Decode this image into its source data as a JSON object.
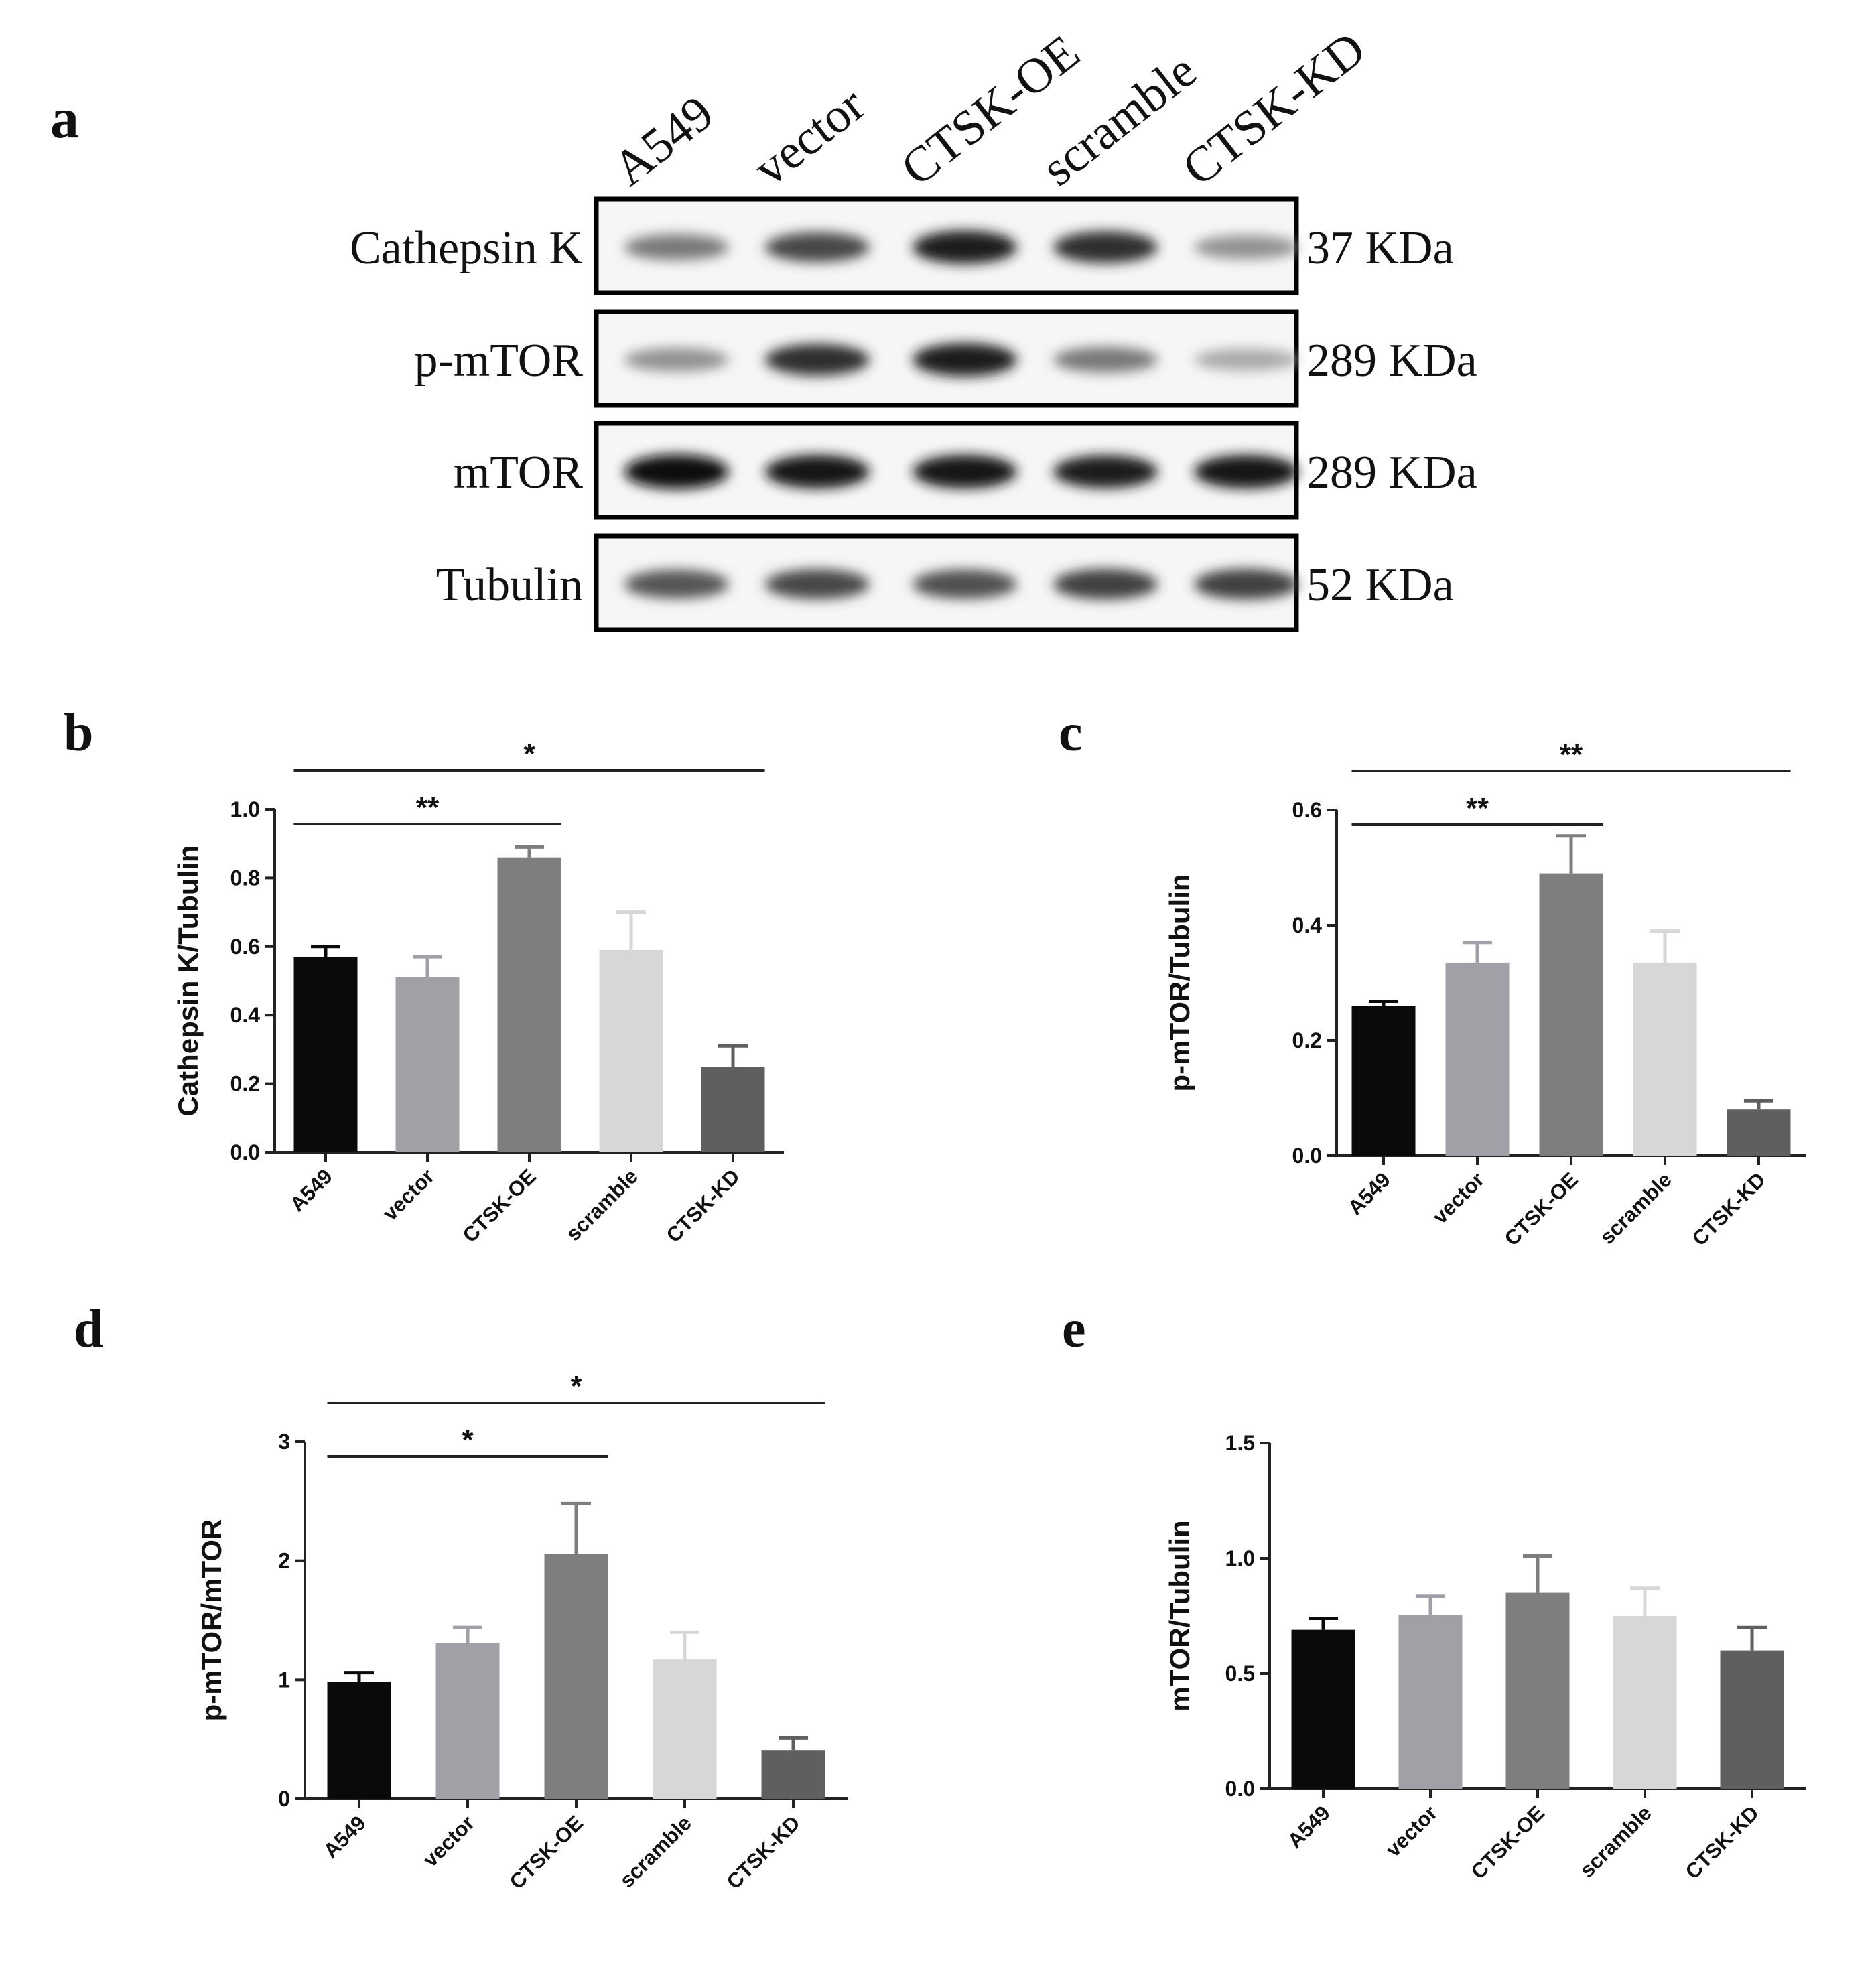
{
  "colors": {
    "A549": "#0a0a0a",
    "vector": "#a1a0a6",
    "CTSK-OE": "#7e7e7e",
    "scramble": "#d7d7d7",
    "CTSK-KD": "#5f5f5f",
    "axis": "#222222"
  },
  "blot": {
    "panel_label": "a",
    "lanes": [
      "A549",
      "vector",
      "CTSK-OE",
      "scramble",
      "CTSK-KD"
    ],
    "rows": [
      {
        "protein": "Cathepsin K",
        "size": "37 KDa",
        "intensity": [
          0.55,
          0.75,
          0.92,
          0.85,
          0.45
        ]
      },
      {
        "protein": "p-mTOR",
        "size": "289 KDa",
        "intensity": [
          0.45,
          0.85,
          0.92,
          0.55,
          0.35
        ]
      },
      {
        "protein": "mTOR",
        "size": "289 KDa",
        "intensity": [
          1.0,
          0.95,
          0.95,
          0.92,
          0.95
        ]
      },
      {
        "protein": "Tubulin",
        "size": "52 KDa",
        "intensity": [
          0.7,
          0.75,
          0.72,
          0.78,
          0.78
        ]
      }
    ]
  },
  "chart_data": [
    {
      "panel_label": "b",
      "type": "bar",
      "categories": [
        "A549",
        "vector",
        "CTSK-OE",
        "scramble",
        "CTSK-KD"
      ],
      "values": [
        0.57,
        0.51,
        0.86,
        0.59,
        0.25
      ],
      "errors": [
        0.03,
        0.06,
        0.03,
        0.11,
        0.06
      ],
      "ylabel": "Cathepsin K/Tubulin",
      "ylim": [
        0,
        1.0
      ],
      "yticks": [
        "0.0",
        "0.2",
        "0.4",
        "0.6",
        "0.8",
        "1.0"
      ],
      "significance": [
        {
          "from": "A549",
          "to": "CTSK-OE",
          "label": "**"
        },
        {
          "from": "A549",
          "to": "CTSK-KD",
          "label": "*"
        }
      ]
    },
    {
      "panel_label": "c",
      "type": "bar",
      "categories": [
        "A549",
        "vector",
        "CTSK-OE",
        "scramble",
        "CTSK-KD"
      ],
      "values": [
        0.26,
        0.335,
        0.49,
        0.335,
        0.08
      ],
      "errors": [
        0.008,
        0.035,
        0.065,
        0.055,
        0.015
      ],
      "ylabel": "p-mTOR/Tubulin",
      "ylim": [
        0,
        0.6
      ],
      "yticks": [
        "0.0",
        "0.2",
        "0.4",
        "0.6"
      ],
      "significance": [
        {
          "from": "A549",
          "to": "CTSK-OE",
          "label": "**"
        },
        {
          "from": "A549",
          "to": "CTSK-KD",
          "label": "**"
        }
      ]
    },
    {
      "panel_label": "d",
      "type": "bar",
      "categories": [
        "A549",
        "vector",
        "CTSK-OE",
        "scramble",
        "CTSK-KD"
      ],
      "values": [
        0.98,
        1.31,
        2.06,
        1.17,
        0.41
      ],
      "errors": [
        0.08,
        0.13,
        0.42,
        0.23,
        0.1
      ],
      "ylabel": "p-mTOR/mTOR",
      "ylim": [
        0,
        3
      ],
      "yticks": [
        "0",
        "1",
        "2",
        "3"
      ],
      "significance": [
        {
          "from": "A549",
          "to": "CTSK-OE",
          "label": "*"
        },
        {
          "from": "A549",
          "to": "CTSK-KD",
          "label": "*"
        }
      ]
    },
    {
      "panel_label": "e",
      "type": "bar",
      "categories": [
        "A549",
        "vector",
        "CTSK-OE",
        "scramble",
        "CTSK-KD"
      ],
      "values": [
        0.69,
        0.755,
        0.85,
        0.75,
        0.6
      ],
      "errors": [
        0.05,
        0.08,
        0.16,
        0.12,
        0.1
      ],
      "ylabel": "mTOR/Tubulin",
      "ylim": [
        0,
        1.5
      ],
      "yticks": [
        "0.0",
        "0.5",
        "1.0",
        "1.5"
      ],
      "significance": []
    }
  ]
}
